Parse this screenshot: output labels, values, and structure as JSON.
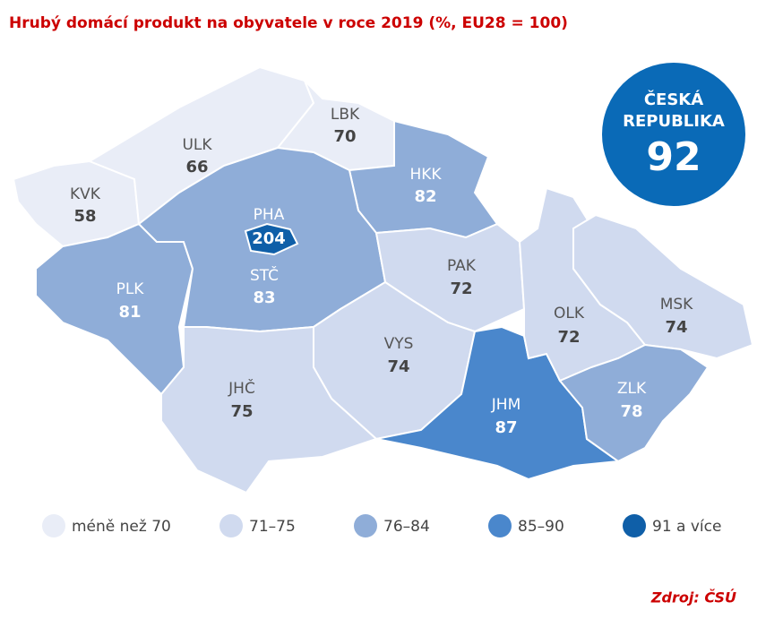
{
  "title": "Hrubý domácí produkt na obyvatele v roce 2019 (%, EU28 = 100)",
  "badge": {
    "label_lines": [
      "ČESKÁ",
      "REPUBLIKA"
    ],
    "value": 92,
    "color": "#0a6ab7"
  },
  "regions": [
    {
      "name": "KVK",
      "value": 58,
      "color": "#e9edf7"
    },
    {
      "name": "ULK",
      "value": 66,
      "color": "#e9edf7"
    },
    {
      "name": "LBK",
      "value": 70,
      "color": "#e9edf7"
    },
    {
      "name": "HKK",
      "value": 82,
      "color": "#8fadd8"
    },
    {
      "name": "PLK",
      "value": 81,
      "color": "#8fadd8"
    },
    {
      "name": "STČ",
      "value": 83,
      "color": "#8fadd8"
    },
    {
      "name": "PHA",
      "value": 204,
      "color": "#0f5fa8"
    },
    {
      "name": "PAK",
      "value": 72,
      "color": "#d0daef"
    },
    {
      "name": "VYS",
      "value": 74,
      "color": "#d0daef"
    },
    {
      "name": "JHČ",
      "value": 75,
      "color": "#d0daef"
    },
    {
      "name": "JHM",
      "value": 87,
      "color": "#4a87cc"
    },
    {
      "name": "OLK",
      "value": 72,
      "color": "#d0daef"
    },
    {
      "name": "MSK",
      "value": 74,
      "color": "#d0daef"
    },
    {
      "name": "ZLK",
      "value": 78,
      "color": "#8fadd8"
    }
  ],
  "legend": [
    {
      "label": "méně než 70",
      "color": "#e9edf7"
    },
    {
      "label": "71–75",
      "color": "#d0daef"
    },
    {
      "label": "76–84",
      "color": "#8fadd8"
    },
    {
      "label": "85–90",
      "color": "#4a87cc"
    },
    {
      "label": "91 a více",
      "color": "#0f5fa8"
    }
  ],
  "source": "Zdroj: ČSÚ"
}
